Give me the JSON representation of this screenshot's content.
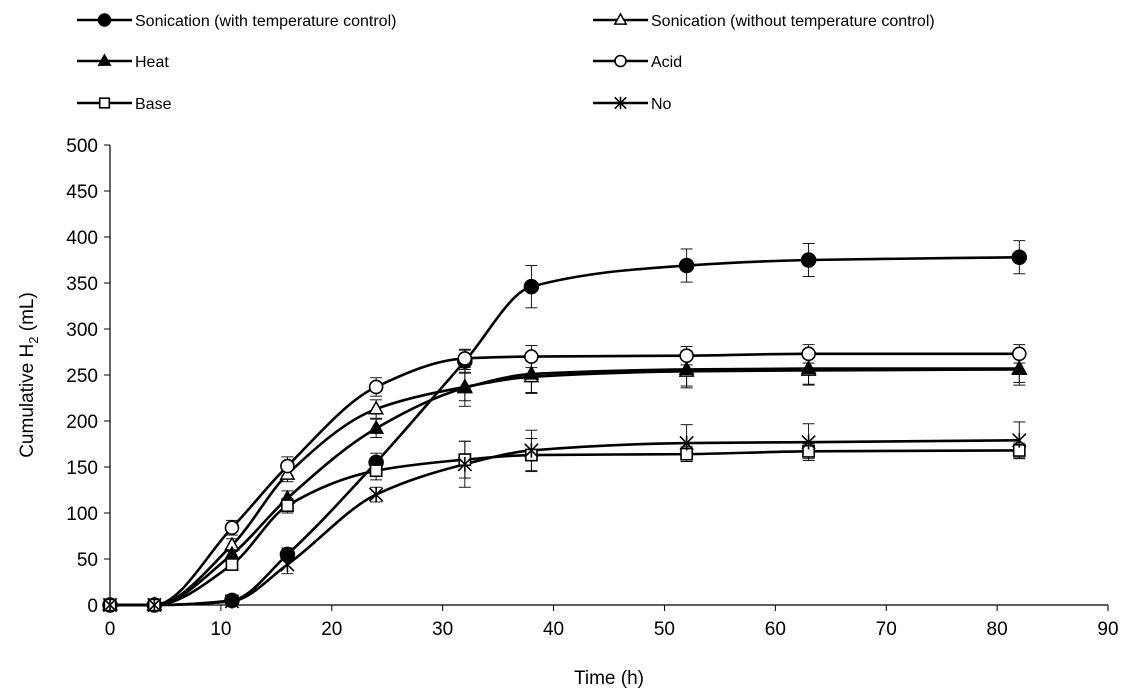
{
  "chart_data": {
    "type": "line",
    "xlabel": "Time (h)",
    "ylabel": {
      "prefix": "Cumulative H",
      "subscript": "2",
      "suffix": " (mL)"
    },
    "xlim": [
      0,
      90
    ],
    "ylim": [
      0,
      500
    ],
    "xticks": [
      0,
      10,
      20,
      30,
      40,
      50,
      60,
      70,
      80,
      90
    ],
    "yticks": [
      0,
      50,
      100,
      150,
      200,
      250,
      300,
      350,
      400,
      450,
      500
    ],
    "grid": false,
    "legend_position": "top",
    "series": [
      {
        "name": "Sonication (with temperature control)",
        "marker": "circle-filled",
        "x": [
          0,
          4,
          11,
          16,
          24,
          32,
          38,
          52,
          63,
          82
        ],
        "y": [
          0,
          0,
          5,
          55,
          155,
          265,
          346,
          369,
          375,
          378
        ],
        "err": [
          0,
          0,
          3,
          7,
          10,
          12,
          23,
          18,
          18,
          18
        ]
      },
      {
        "name": "Sonication (without temperature control)",
        "marker": "triangle-open",
        "x": [
          0,
          4,
          11,
          16,
          24,
          32,
          38,
          52,
          63,
          82
        ],
        "y": [
          0,
          0,
          65,
          142,
          213,
          237,
          248,
          254,
          255,
          256
        ],
        "err": [
          0,
          0,
          7,
          8,
          10,
          15,
          18,
          16,
          15,
          14
        ]
      },
      {
        "name": "Heat",
        "marker": "triangle-filled",
        "x": [
          0,
          4,
          11,
          16,
          24,
          32,
          38,
          52,
          63,
          82
        ],
        "y": [
          0,
          0,
          55,
          116,
          192,
          236,
          251,
          256,
          257,
          257
        ],
        "err": [
          0,
          0,
          6,
          8,
          10,
          20,
          20,
          20,
          18,
          18
        ]
      },
      {
        "name": "Acid",
        "marker": "circle-open",
        "x": [
          0,
          4,
          11,
          16,
          24,
          32,
          38,
          52,
          63,
          82
        ],
        "y": [
          0,
          0,
          84,
          151,
          237,
          268,
          270,
          271,
          273,
          273
        ],
        "err": [
          0,
          0,
          8,
          10,
          10,
          10,
          12,
          10,
          10,
          10
        ]
      },
      {
        "name": "Base",
        "marker": "square-open",
        "x": [
          0,
          4,
          11,
          16,
          24,
          32,
          38,
          52,
          63,
          82
        ],
        "y": [
          0,
          0,
          44,
          108,
          146,
          158,
          163,
          164,
          167,
          168
        ],
        "err": [
          0,
          0,
          5,
          8,
          10,
          20,
          18,
          8,
          8,
          8
        ]
      },
      {
        "name": "No",
        "marker": "asterisk",
        "x": [
          0,
          4,
          11,
          16,
          24,
          32,
          38,
          52,
          63,
          82
        ],
        "y": [
          0,
          0,
          4,
          44,
          120,
          153,
          168,
          176,
          177,
          179
        ],
        "err": [
          0,
          0,
          3,
          10,
          8,
          25,
          22,
          20,
          20,
          20
        ]
      }
    ]
  }
}
